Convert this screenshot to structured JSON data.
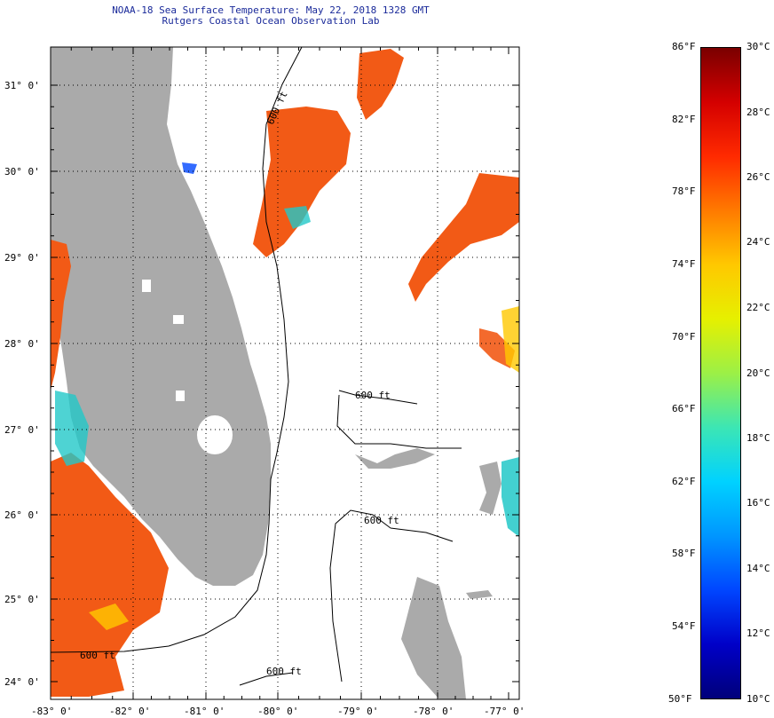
{
  "title": {
    "line1": "NOAA-18 Sea Surface Temperature:  May 22, 2018 1328 GMT",
    "line2": "Rutgers Coastal Ocean Observation Lab"
  },
  "map": {
    "lon_labels": [
      "-83° 0'",
      "-82° 0'",
      "-81° 0'",
      "-80° 0'",
      "-79° 0'",
      "-78° 0'",
      "-77° 0'"
    ],
    "lat_labels": [
      "31° 0'",
      "30° 0'",
      "29° 0'",
      "28° 0'",
      "27° 0'",
      "26° 0'",
      "25° 0'",
      "24° 0'"
    ],
    "isobath_labels": [
      "600 ft",
      "600 ft",
      "600 ft",
      "600 ft",
      "600 ft"
    ],
    "colors": {
      "land": "#aaaaaa",
      "ocean_nodata": "#ffffff",
      "warm": "#f25a16",
      "cool": "#22c8c8",
      "frame": "#000000"
    }
  },
  "colorbar": {
    "fahrenheit": [
      "86°F",
      "82°F",
      "78°F",
      "74°F",
      "70°F",
      "66°F",
      "62°F",
      "58°F",
      "54°F",
      "50°F"
    ],
    "celsius": [
      "30°C",
      "28°C",
      "26°C",
      "24°C",
      "22°C",
      "20°C",
      "18°C",
      "16°C",
      "14°C",
      "12°C",
      "10°C"
    ],
    "gradient": [
      "#7a0000",
      "#d40000",
      "#ff2a00",
      "#ff7a00",
      "#ffc800",
      "#e6f000",
      "#9cf046",
      "#3ce6b4",
      "#00d2ff",
      "#0096ff",
      "#0046ff",
      "#0000c8",
      "#00007a"
    ]
  }
}
